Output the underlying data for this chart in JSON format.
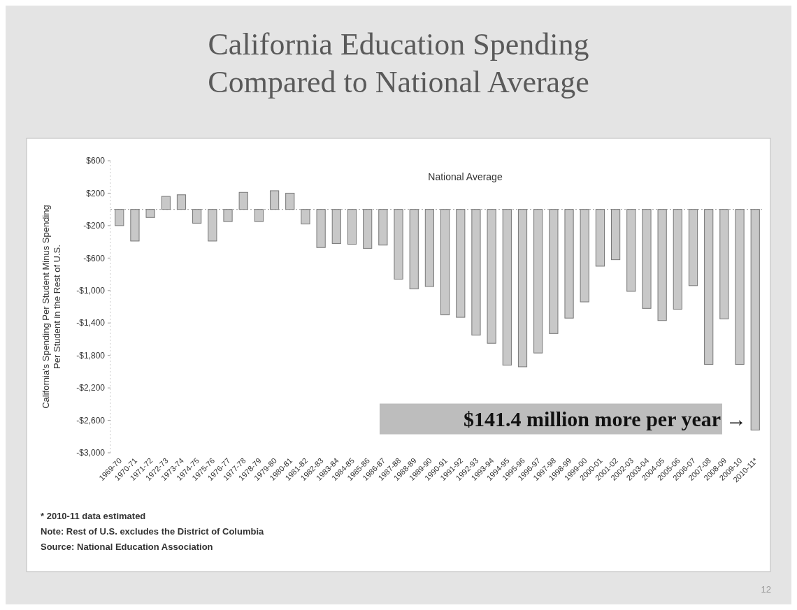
{
  "chart_data": {
    "type": "bar",
    "title": "California Education Spending Compared to National Average",
    "ylabel": "California's Spending Per Student Minus Spending Per Student in the Rest of U.S.",
    "categories": [
      "1969-70",
      "1970-71",
      "1971-72",
      "1972-73",
      "1973-74",
      "1974-75",
      "1975-76",
      "1976-77",
      "1977-78",
      "1978-79",
      "1979-80",
      "1980-81",
      "1981-82",
      "1982-83",
      "1983-84",
      "1984-85",
      "1985-86",
      "1986-87",
      "1987-88",
      "1988-89",
      "1989-90",
      "1990-91",
      "1991-92",
      "1992-93",
      "1993-94",
      "1994-95",
      "1995-96",
      "1996-97",
      "1997-98",
      "1998-99",
      "1999-00",
      "2000-01",
      "2001-02",
      "2002-03",
      "2003-04",
      "2004-05",
      "2005-06",
      "2006-07",
      "2007-08",
      "2008-09",
      "2009-10",
      "2010-11*"
    ],
    "values": [
      -200,
      -390,
      -100,
      160,
      180,
      -170,
      -390,
      -150,
      210,
      -150,
      230,
      200,
      -180,
      -470,
      -420,
      -430,
      -480,
      -440,
      -860,
      -980,
      -950,
      -1300,
      -1330,
      -1550,
      -1650,
      -1920,
      -1940,
      -1770,
      -1530,
      -1340,
      -1140,
      -700,
      -620,
      -1010,
      -1220,
      -1370,
      -1230,
      -940,
      -1910,
      -1350,
      -1910,
      -2720
    ],
    "color": "#c8c8c8",
    "ylim": [
      -3000,
      600
    ],
    "yticks": [
      {
        "value": 600,
        "label": "$600"
      },
      {
        "value": 200,
        "label": "$200"
      },
      {
        "value": -200,
        "label": "-$200"
      },
      {
        "value": -600,
        "label": "-$600"
      },
      {
        "value": -1000,
        "label": "-$1,000"
      },
      {
        "value": -1400,
        "label": "-$1,400"
      },
      {
        "value": -1800,
        "label": "-$1,800"
      },
      {
        "value": -2200,
        "label": "-$2,200"
      },
      {
        "value": -2600,
        "label": "-$2,600"
      },
      {
        "value": -3000,
        "label": "-$3,000"
      }
    ],
    "ref_lines": [
      {
        "axis": "y",
        "value": 0,
        "label": "National Average",
        "line_style": "dotted",
        "color": "#999999"
      }
    ],
    "annotations": [
      "$141.4 million more per year →",
      "* 2010-11 data estimated",
      "Note: Rest of U.S. excludes the District of Columbia",
      "Source: National Education Association",
      "12"
    ],
    "grid": false
  }
}
